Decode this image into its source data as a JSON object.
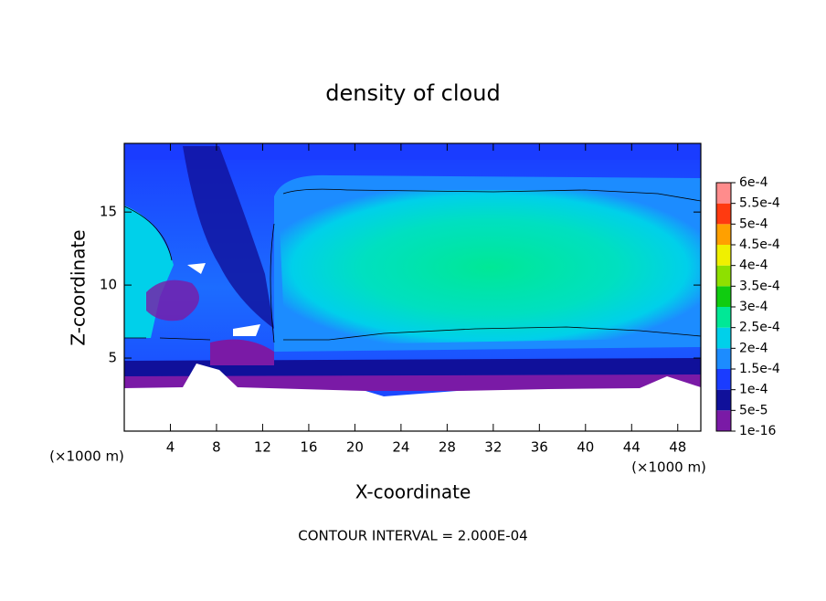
{
  "chart_data": {
    "type": "contour",
    "title": "density of cloud",
    "xlabel": "X-coordinate",
    "ylabel": "Z-coordinate",
    "x_unit_label": "(×1000 m)",
    "y_unit_label": "(×1000 m)",
    "annotation": "CONTOUR INTERVAL = 2.000E-04",
    "xlim": [
      0,
      50
    ],
    "ylim": [
      0,
      19.7
    ],
    "xticks": [
      4,
      8,
      12,
      16,
      20,
      24,
      28,
      32,
      36,
      40,
      44,
      48
    ],
    "yticks": [
      5,
      10,
      15
    ],
    "colorbar": {
      "levels": [
        {
          "value": 1e-16,
          "label": "1e-16"
        },
        {
          "value": 5e-05,
          "label": "5e-5"
        },
        {
          "value": 0.0001,
          "label": "1e-4"
        },
        {
          "value": 0.00015,
          "label": "1.5e-4"
        },
        {
          "value": 0.0002,
          "label": "2e-4"
        },
        {
          "value": 0.00025,
          "label": "2.5e-4"
        },
        {
          "value": 0.0003,
          "label": "3e-4"
        },
        {
          "value": 0.00035,
          "label": "3.5e-4"
        },
        {
          "value": 0.0004,
          "label": "4e-4"
        },
        {
          "value": 0.00045,
          "label": "4.5e-4"
        },
        {
          "value": 0.0005,
          "label": "5e-4"
        },
        {
          "value": 0.00055,
          "label": "5.5e-4"
        },
        {
          "value": 0.0006,
          "label": "6e-4"
        }
      ],
      "colors": [
        "#7a1aa6",
        "#10109a",
        "#1a3cff",
        "#1c8cff",
        "#00d0ea",
        "#00e896",
        "#10cc10",
        "#8ee000",
        "#f0f000",
        "#ffa000",
        "#ff3a10",
        "#ff8c8c"
      ]
    }
  }
}
